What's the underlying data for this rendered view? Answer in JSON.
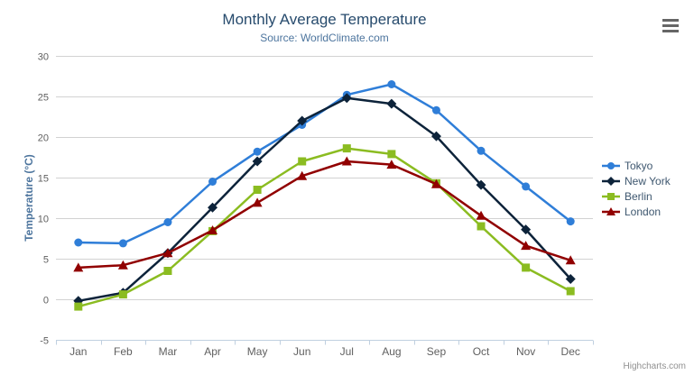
{
  "header": {
    "title": "Monthly Average Temperature",
    "subtitle": "Source: WorldClimate.com"
  },
  "menu": {
    "icon": "hamburger-menu-icon"
  },
  "credits": {
    "label": "Highcharts.com"
  },
  "chart_data": {
    "type": "line",
    "title": "Monthly Average Temperature",
    "subtitle": "Source: WorldClimate.com",
    "xlabel": "",
    "ylabel": "Temperature (°C)",
    "categories": [
      "Jan",
      "Feb",
      "Mar",
      "Apr",
      "May",
      "Jun",
      "Jul",
      "Aug",
      "Sep",
      "Oct",
      "Nov",
      "Dec"
    ],
    "series": [
      {
        "name": "Tokyo",
        "color": "#2f7ed8",
        "marker": "circle",
        "values": [
          7.0,
          6.9,
          9.5,
          14.5,
          18.2,
          21.5,
          25.2,
          26.5,
          23.3,
          18.3,
          13.9,
          9.6
        ]
      },
      {
        "name": "New York",
        "color": "#0d233a",
        "marker": "diamond",
        "values": [
          -0.2,
          0.8,
          5.7,
          11.3,
          17.0,
          22.0,
          24.8,
          24.1,
          20.1,
          14.1,
          8.6,
          2.5
        ]
      },
      {
        "name": "Berlin",
        "color": "#8bbc21",
        "marker": "square",
        "values": [
          -0.9,
          0.6,
          3.5,
          8.4,
          13.5,
          17.0,
          18.6,
          17.9,
          14.3,
          9.0,
          3.9,
          1.0
        ]
      },
      {
        "name": "London",
        "color": "#910000",
        "marker": "triangle",
        "values": [
          3.9,
          4.2,
          5.7,
          8.5,
          11.9,
          15.2,
          17.0,
          16.6,
          14.2,
          10.3,
          6.6,
          4.8
        ]
      }
    ],
    "ylim": [
      -5,
      30
    ],
    "yticks": [
      -5,
      0,
      5,
      10,
      15,
      20,
      25,
      30
    ],
    "grid": true,
    "legend_position": "right",
    "theme": {
      "title_color": "#274b6d",
      "subtitle_color": "#4d759e",
      "axis_title_color": "#4d759e",
      "tick_label_color": "#606060",
      "grid_color": "#d2d2d2",
      "axis_line_color": "#c0d0e0",
      "legend_text_color": "#3E576F",
      "credits_color": "#909090",
      "background": "#ffffff"
    }
  }
}
